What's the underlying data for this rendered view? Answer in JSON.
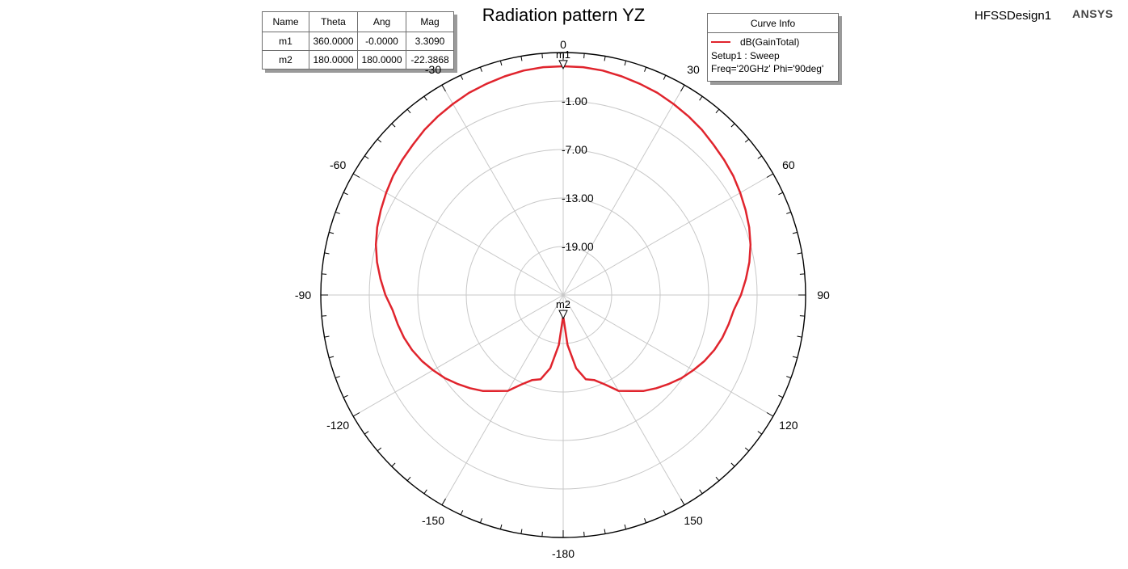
{
  "header": {
    "title": "Radiation pattern YZ",
    "design_name": "HFSSDesign1",
    "brand": "ANSYS"
  },
  "marker_table": {
    "headers": [
      "Name",
      "Theta",
      "Ang",
      "Mag"
    ],
    "rows": [
      {
        "name": "m1",
        "theta": "360.0000",
        "ang": "-0.0000",
        "mag": "3.3090"
      },
      {
        "name": "m2",
        "theta": "180.0000",
        "ang": "180.0000",
        "mag": "-22.3868"
      }
    ]
  },
  "curve_info": {
    "title": "Curve Info",
    "legend_label": "dB(GainTotal)",
    "setup": "Setup1 : Sweep",
    "params": "Freq='20GHz' Phi='90deg'",
    "color": "#e0242d"
  },
  "chart_data": {
    "type": "line",
    "projection": "polar",
    "title": "Radiation pattern YZ",
    "angle_ticks": [
      "0",
      "30",
      "60",
      "90",
      "120",
      "150",
      "-180",
      "-150",
      "-120",
      "-90",
      "-60",
      "-30"
    ],
    "radial_ticks": [
      "-1.00",
      "-7.00",
      "-13.00",
      "-19.00"
    ],
    "radial_tick_values": [
      -1,
      -7,
      -13,
      -19
    ],
    "radial_range": [
      -25,
      5
    ],
    "grid": true,
    "series": [
      {
        "name": "dB(GainTotal)",
        "color": "#e0242d",
        "theta_deg": [
          -180,
          -175,
          -170,
          -165,
          -160,
          -155,
          -150,
          -145,
          -140,
          -135,
          -130,
          -125,
          -120,
          -115,
          -110,
          -105,
          -100,
          -95,
          -90,
          -85,
          -80,
          -75,
          -70,
          -65,
          -60,
          -55,
          -50,
          -45,
          -40,
          -35,
          -30,
          -25,
          -20,
          -15,
          -10,
          -5,
          0,
          5,
          10,
          15,
          20,
          25,
          30,
          35,
          40,
          45,
          50,
          55,
          60,
          65,
          70,
          75,
          80,
          85,
          90,
          95,
          100,
          105,
          110,
          115,
          120,
          125,
          130,
          135,
          140,
          145,
          150,
          155,
          160,
          165,
          170,
          175,
          180
        ],
        "gain_db": [
          -22.4,
          -18.8,
          -15.8,
          -14.2,
          -13.8,
          -12.8,
          -11.3,
          -10.5,
          -9.5,
          -8.7,
          -7.9,
          -7.1,
          -6.4,
          -5.7,
          -5.1,
          -4.6,
          -4.2,
          -3.8,
          -3.0,
          -2.3,
          -1.6,
          -1.0,
          -0.5,
          -0.1,
          0.3,
          0.7,
          1.0,
          1.3,
          1.7,
          2.0,
          2.3,
          2.6,
          2.8,
          3.0,
          3.2,
          3.3,
          3.3,
          3.3,
          3.2,
          3.0,
          2.8,
          2.6,
          2.3,
          2.0,
          1.7,
          1.3,
          1.0,
          0.7,
          0.3,
          -0.1,
          -0.5,
          -1.0,
          -1.6,
          -2.3,
          -3.0,
          -3.8,
          -4.2,
          -4.6,
          -5.1,
          -5.7,
          -6.4,
          -7.1,
          -7.9,
          -8.7,
          -9.5,
          -10.5,
          -11.3,
          -12.8,
          -13.8,
          -14.2,
          -15.8,
          -18.8,
          -22.4
        ]
      }
    ],
    "markers": [
      {
        "name": "m1",
        "theta_deg": 0,
        "gain_db": 3.309
      },
      {
        "name": "m2",
        "theta_deg": 180,
        "gain_db": -22.3868
      }
    ]
  }
}
